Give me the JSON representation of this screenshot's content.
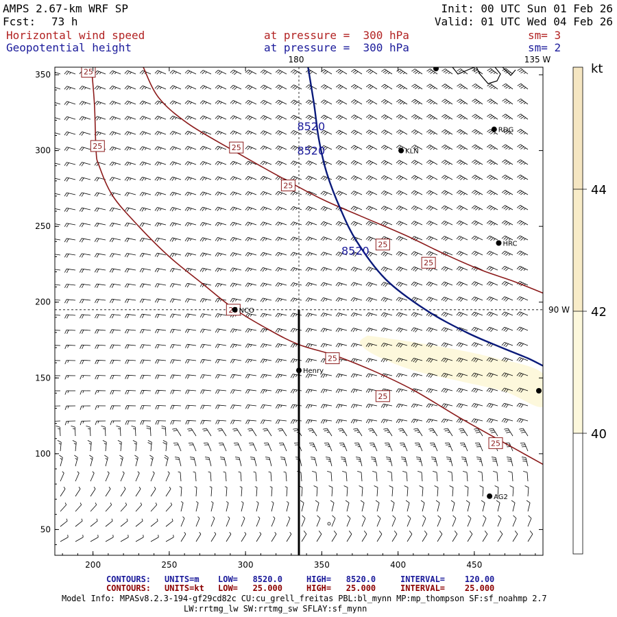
{
  "header": {
    "model": "AMPS 2.67-km WRF SP",
    "fcst_label": "Fcst:",
    "fcst_value": "73 h",
    "init": "Init: 00 UTC Sun 01 Feb 26",
    "valid": "Valid: 01 UTC Wed 04 Feb 26",
    "field1_name": "Horizontal wind speed",
    "field1_level": "at pressure =  300 hPa",
    "field1_sm": "sm= 3",
    "field2_name": "Geopotential height",
    "field2_level": "at pressure =  300 hPa",
    "field2_sm": "sm= 2"
  },
  "map_labels": {
    "lon_180": "180",
    "lon_135w": "135 W",
    "lon_90w": "90 W"
  },
  "colorbar": {
    "unit": "kt",
    "levels": [
      40,
      42,
      44
    ],
    "colors": [
      "#ffffff",
      "#fdf8dc",
      "#f8ecc8",
      "#f5e6c2"
    ]
  },
  "stations": [
    {
      "name": "RDG",
      "x": 463,
      "y": 314
    },
    {
      "name": "KLN",
      "x": 402,
      "y": 300
    },
    {
      "name": "HRC",
      "x": 466,
      "y": 239
    },
    {
      "name": "NCO",
      "x": 293,
      "y": 195
    },
    {
      "name": "Henry",
      "x": 335,
      "y": 155
    },
    {
      "name": "AG2",
      "x": 460,
      "y": 72
    }
  ],
  "footer": {
    "line1_contours": "CONTOURS:",
    "line1_units": "UNITS=m",
    "line1_low": "LOW=   8520.0",
    "line1_high": "HIGH=   8520.0",
    "line1_interval": "INTERVAL=    120.00",
    "line2_contours": "CONTOURS:",
    "line2_units": "UNITS=kt",
    "line2_low": "LOW=   25.000",
    "line2_high": "HIGH=   25.000",
    "line2_interval": "INTERVAL=    25.000",
    "model_info": "Model Info: MPASv8.2.3-194-gf29cd82c CU:cu_grell_freitas PBL:bl_mynn MP:mp_thompson SF:sf_noahmp 2.7",
    "model_info2": "LW:rrtmg_lw SW:rrtmg_sw SFLAY:sf_mynn"
  },
  "chart_data": {
    "type": "contour-map",
    "title": "Horizontal wind speed and Geopotential height at 300 hPa",
    "xlim": [
      175,
      495
    ],
    "ylim": [
      33,
      355
    ],
    "xticks": [
      "200",
      "250",
      "300",
      "350",
      "400",
      "450"
    ],
    "yticks": [
      "50",
      "100",
      "150",
      "200",
      "250",
      "300",
      "350"
    ],
    "height_contour": {
      "value": 8520,
      "label": "8520",
      "color": "#0a1a7a",
      "points": [
        [
          341,
          355
        ],
        [
          345,
          330
        ],
        [
          348,
          308
        ],
        [
          353,
          286
        ],
        [
          362,
          262
        ],
        [
          373,
          240
        ],
        [
          392,
          215
        ],
        [
          418,
          195
        ],
        [
          445,
          180
        ],
        [
          468,
          170
        ],
        [
          485,
          163
        ],
        [
          495,
          158
        ]
      ],
      "label_positions": [
        [
          343,
          316
        ],
        [
          343,
          300
        ],
        [
          372,
          234
        ]
      ]
    },
    "speed_contours": [
      {
        "value": 25,
        "label": "25",
        "color": "#8b1a1a",
        "points": [
          [
            199,
            355
          ],
          [
            201,
            330
          ],
          [
            202,
            300
          ],
          [
            204,
            290
          ],
          [
            213,
            270
          ],
          [
            230,
            250
          ],
          [
            250,
            230
          ],
          [
            272,
            212
          ],
          [
            292,
            196
          ],
          [
            315,
            182
          ],
          [
            335,
            172
          ],
          [
            358,
            165
          ],
          [
            383,
            155
          ],
          [
            410,
            142
          ],
          [
            440,
            124
          ],
          [
            470,
            107
          ],
          [
            495,
            93
          ]
        ],
        "label_positions": [
          [
            197,
            352
          ],
          [
            203,
            303
          ],
          [
            292,
            195
          ],
          [
            357,
            163
          ],
          [
            390,
            138
          ],
          [
            464,
            107
          ]
        ]
      },
      {
        "value": 25,
        "label": "25",
        "color": "#8b1a1a",
        "points": [
          [
            233,
            355
          ],
          [
            243,
            335
          ],
          [
            262,
            318
          ],
          [
            292,
            300
          ],
          [
            322,
            283
          ],
          [
            350,
            268
          ],
          [
            375,
            257
          ],
          [
            405,
            244
          ],
          [
            432,
            231
          ],
          [
            455,
            221
          ],
          [
            475,
            214
          ],
          [
            495,
            206
          ]
        ],
        "label_positions": [
          [
            294,
            302
          ],
          [
            328,
            277
          ],
          [
            390,
            238
          ],
          [
            420,
            226
          ]
        ]
      }
    ],
    "shaded_region": {
      "level": "40-42 kt",
      "color": "#fdf8dc",
      "points": [
        [
          380,
          178
        ],
        [
          420,
          172
        ],
        [
          460,
          164
        ],
        [
          495,
          153
        ],
        [
          495,
          131
        ],
        [
          470,
          141
        ],
        [
          440,
          148
        ],
        [
          410,
          155
        ],
        [
          385,
          165
        ],
        [
          375,
          173
        ]
      ]
    },
    "cross_section": {
      "x": 335,
      "y_from": 33,
      "y_to": 195
    },
    "dashed_lines": {
      "lon_180_x": 335,
      "lat_y": 195
    }
  }
}
